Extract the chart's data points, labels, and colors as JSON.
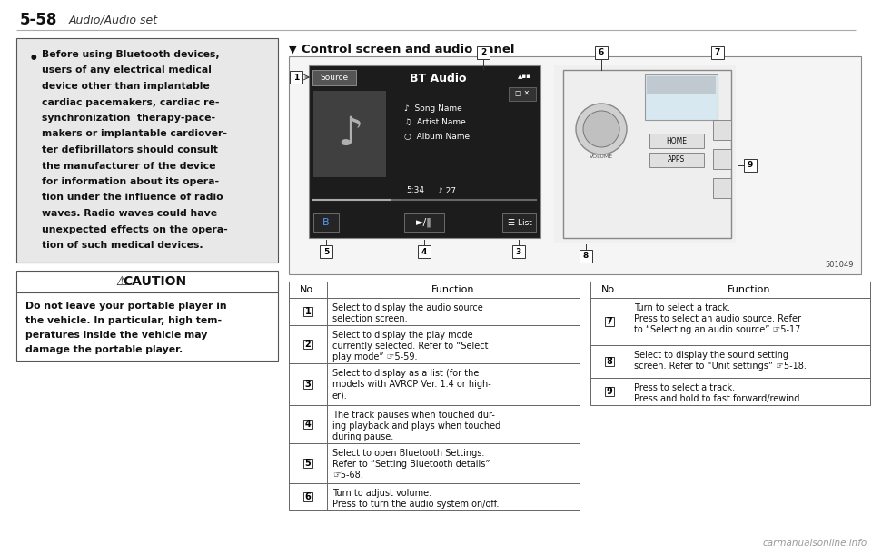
{
  "page_num": "5-58",
  "page_title": "Audio/Audio set",
  "bg_color": "#ffffff",
  "bullet_text_lines": [
    "Before using Bluetooth devices,",
    "users of any electrical medical",
    "device other than implantable",
    "cardiac pacemakers, cardiac re-",
    "synchronization  therapy-pace-",
    "makers or implantable cardiover-",
    "ter defibrillators should consult",
    "the manufacturer of the device",
    "for information about its opera-",
    "tion under the influence of radio",
    "waves. Radio waves could have",
    "unexpected effects on the opera-",
    "tion of such medical devices."
  ],
  "caution_header": "CAUTION",
  "caution_text_lines": [
    "Do not leave your portable player in",
    "the vehicle. In particular, high tem-",
    "peratures inside the vehicle may",
    "damage the portable player."
  ],
  "section_title": "Control screen and audio panel",
  "table_left_rows": [
    [
      "1",
      "Select to display the audio source\nselection screen."
    ],
    [
      "2",
      "Select to display the play mode\ncurrently selected. Refer to “Select\nplay mode” ☞5-59."
    ],
    [
      "3",
      "Select to display as a list (for the\nmodels with AVRCP Ver. 1.4 or high-\ner)."
    ],
    [
      "4",
      "The track pauses when touched dur-\ning playback and plays when touched\nduring pause."
    ],
    [
      "5",
      "Select to open Bluetooth Settings.\nRefer to “Setting Bluetooth details”\n☞5-68."
    ],
    [
      "6",
      "Turn to adjust volume.\nPress to turn the audio system on/off."
    ]
  ],
  "table_right_rows": [
    [
      "7",
      "Turn to select a track.\nPress to select an audio source. Refer\nto “Selecting an audio source” ☞5-17."
    ],
    [
      "8",
      "Select to display the sound setting\nscreen. Refer to “Unit settings” ☞5-18."
    ],
    [
      "9",
      "Press to select a track.\nPress and hold to fast forward/rewind."
    ]
  ],
  "watermark": "carmanualsonline.info",
  "label_501049": "501049"
}
